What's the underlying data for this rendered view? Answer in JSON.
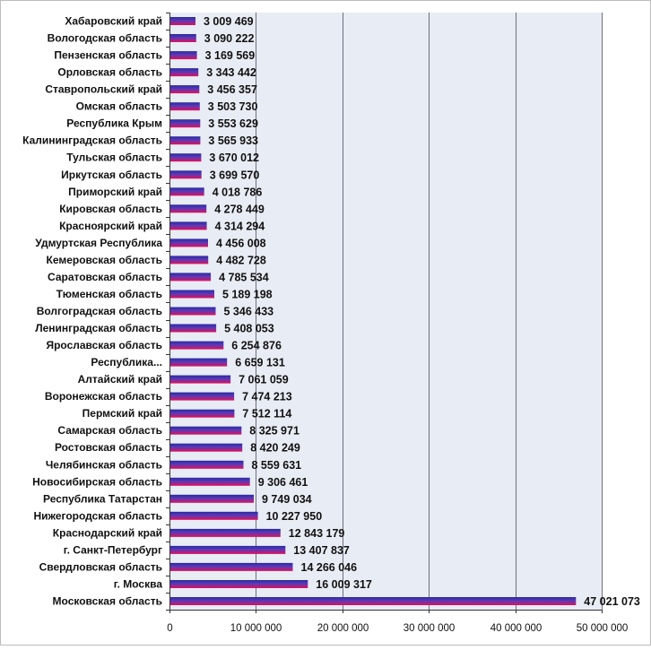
{
  "chart_data": {
    "type": "bar",
    "orientation": "horizontal",
    "categories": [
      "Хабаровский край",
      "Вологодская область",
      "Пензенская область",
      "Орловская область",
      "Ставропольский край",
      "Омская область",
      "Республика Крым",
      "Калининградская область",
      "Тульская область",
      "Иркутская область",
      "Приморский край",
      "Кировская область",
      "Красноярский край",
      "Удмуртская Республика",
      "Кемеровская область",
      "Саратовская область",
      "Тюменская область",
      "Волгоградская область",
      "Ленинградская область",
      "Ярославская область",
      "Республика...",
      "Алтайский край",
      "Воронежская область",
      "Пермский край",
      "Самарская область",
      "Ростовская область",
      "Челябинская область",
      "Новосибирская область",
      "Республика Татарстан",
      "Нижегородская область",
      "Краснодарский край",
      "г. Санкт-Петербург",
      "Свердловская область",
      "г. Москва",
      "Московская область"
    ],
    "values": [
      3009469,
      3090222,
      3169569,
      3343442,
      3456357,
      3503730,
      3553629,
      3565933,
      3670012,
      3699570,
      4018786,
      4278449,
      4314294,
      4456008,
      4482728,
      4785534,
      5189198,
      5346433,
      5408053,
      6254876,
      6659131,
      7061059,
      7474213,
      7512114,
      8325971,
      8420249,
      8559631,
      9306461,
      9749034,
      10227950,
      12843179,
      13407837,
      14266046,
      16009317,
      47021073
    ],
    "value_labels": [
      "3 009 469",
      "3 090 222",
      "3 169 569",
      "3 343 442",
      "3 456 357",
      "3 503 730",
      "3 553 629",
      "3 565 933",
      "3 670 012",
      "3 699 570",
      "4 018 786",
      "4 278 449",
      "4 314 294",
      "4 456 008",
      "4 482 728",
      "4 785 534",
      "5 189 198",
      "5 346 433",
      "5 408 053",
      "6 254 876",
      "6 659 131",
      "7 061 059",
      "7 474 213",
      "7 512 114",
      "8 325 971",
      "8 420 249",
      "8 559 631",
      "9 306 461",
      "9 749 034",
      "10 227 950",
      "12 843 179",
      "13 407 837",
      "14 266 046",
      "16 009 317",
      "47 021 073"
    ],
    "xlim": [
      0,
      50000000
    ],
    "x_ticks": [
      0,
      10000000,
      20000000,
      30000000,
      40000000,
      50000000
    ],
    "x_tick_labels": [
      "0",
      "10 000 000",
      "20 000 000",
      "30 000 000",
      "40 000 000",
      "50 000 000"
    ],
    "title": "",
    "xlabel": "",
    "ylabel": "",
    "grid": "vertical",
    "legend": "none",
    "colors": {
      "bar_top": "#2a2aa0",
      "bar_bottom": "#e0105a",
      "plot_background": "#e8ecf4",
      "grid_line": "#6e6e80"
    }
  }
}
